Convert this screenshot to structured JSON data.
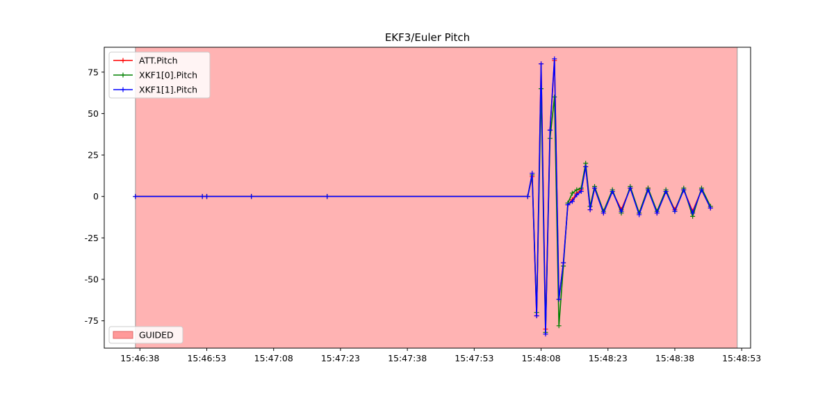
{
  "chart_data": {
    "type": "line",
    "title": "EKF3/Euler Pitch",
    "xlabel": "",
    "ylabel": "",
    "x_unit": "time (HH:MM:SS)",
    "xlim": [
      "15:46:30",
      "15:48:55"
    ],
    "ylim": [
      -91.5,
      90
    ],
    "xticks": [
      "15:46:38",
      "15:46:53",
      "15:47:08",
      "15:47:23",
      "15:47:38",
      "15:47:53",
      "15:48:08",
      "15:48:23",
      "15:48:38",
      "15:48:53"
    ],
    "yticks": [
      75,
      50,
      25,
      0,
      -25,
      -50,
      -75
    ],
    "grid": false,
    "legend": {
      "placement": "top-left"
    },
    "mode_legend": {
      "placement": "bottom-left"
    },
    "mode_regions": [
      {
        "label": "GUIDED",
        "start": "15:46:37",
        "end": "15:48:52",
        "color": "#ff9999"
      }
    ],
    "series": [
      {
        "name": "ATT.Pitch",
        "color": "#ff0000",
        "marker": "+",
        "x": [
          "15:46:37",
          "15:46:52",
          "15:46:53",
          "15:47:03",
          "15:47:20",
          "15:48:05",
          "15:48:06",
          "15:48:07",
          "15:48:08",
          "15:48:09",
          "15:48:10",
          "15:48:11",
          "15:48:12",
          "15:48:13",
          "15:48:14",
          "15:48:15",
          "15:48:16",
          "15:48:17",
          "15:48:18",
          "15:48:19",
          "15:48:20",
          "15:48:22",
          "15:48:24",
          "15:48:26",
          "15:48:28",
          "15:48:30",
          "15:48:32",
          "15:48:34",
          "15:48:36",
          "15:48:38",
          "15:48:40",
          "15:48:42",
          "15:48:44",
          "15:48:46"
        ],
        "y": [
          0,
          0,
          0,
          0,
          0,
          0,
          12,
          -72,
          80,
          -80,
          40,
          82,
          -62,
          -40,
          -5,
          -2,
          2,
          4,
          18,
          -8,
          5,
          -10,
          3,
          -8,
          5,
          -10,
          5,
          -10,
          3,
          -8,
          4,
          -9,
          4,
          -7
        ]
      },
      {
        "name": "XKF1[0].Pitch",
        "color": "#008000",
        "marker": "+",
        "x": [
          "15:46:37",
          "15:46:52",
          "15:46:53",
          "15:47:03",
          "15:47:20",
          "15:48:05",
          "15:48:06",
          "15:48:07",
          "15:48:08",
          "15:48:09",
          "15:48:10",
          "15:48:11",
          "15:48:12",
          "15:48:13",
          "15:48:14",
          "15:48:15",
          "15:48:16",
          "15:48:17",
          "15:48:18",
          "15:48:19",
          "15:48:20",
          "15:48:22",
          "15:48:24",
          "15:48:26",
          "15:48:28",
          "15:48:30",
          "15:48:32",
          "15:48:34",
          "15:48:36",
          "15:48:38",
          "15:48:40",
          "15:48:42",
          "15:48:44",
          "15:48:46"
        ],
        "y": [
          0,
          0,
          0,
          0,
          0,
          0,
          13,
          -70,
          65,
          -82,
          35,
          60,
          -78,
          -42,
          -4,
          2,
          4,
          5,
          20,
          -6,
          6,
          -9,
          4,
          -10,
          6,
          -10,
          5,
          -9,
          4,
          -9,
          5,
          -12,
          5,
          -6
        ]
      },
      {
        "name": "XKF1[1].Pitch",
        "color": "#0000ff",
        "marker": "+",
        "x": [
          "15:46:37",
          "15:46:52",
          "15:46:53",
          "15:47:03",
          "15:47:20",
          "15:48:05",
          "15:48:06",
          "15:48:07",
          "15:48:08",
          "15:48:09",
          "15:48:10",
          "15:48:11",
          "15:48:12",
          "15:48:13",
          "15:48:14",
          "15:48:15",
          "15:48:16",
          "15:48:17",
          "15:48:18",
          "15:48:19",
          "15:48:20",
          "15:48:22",
          "15:48:24",
          "15:48:26",
          "15:48:28",
          "15:48:30",
          "15:48:32",
          "15:48:34",
          "15:48:36",
          "15:48:38",
          "15:48:40",
          "15:48:42",
          "15:48:44",
          "15:48:46"
        ],
        "y": [
          0,
          0,
          0,
          0,
          0,
          0,
          14,
          -72,
          80,
          -83,
          40,
          83,
          -62,
          -40,
          -5,
          -3,
          1,
          3,
          18,
          -8,
          5,
          -10,
          3,
          -9,
          5,
          -11,
          4,
          -10,
          3,
          -9,
          4,
          -10,
          4,
          -7
        ]
      }
    ]
  }
}
